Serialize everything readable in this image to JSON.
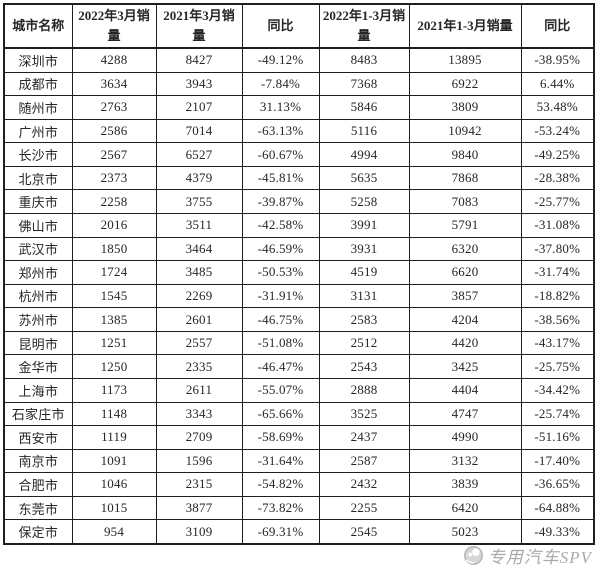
{
  "page": {
    "background": "#ffffff",
    "border_color": "#1f1f1f",
    "text_color": "#262626"
  },
  "chart_data": {
    "type": "table",
    "title": "",
    "columns": [
      "城市名称",
      "2022年3月销量",
      "2021年3月销量",
      "同比",
      "2022年1-3月销量",
      "2021年1-3月销量",
      "同比"
    ],
    "cell_names": [
      "cell-city-name",
      "cell-2022-mar-sales",
      "cell-2021-mar-sales",
      "cell-yoy-mar",
      "cell-2022-jan-mar-sales",
      "cell-2021-jan-mar-sales",
      "cell-yoy-jan-mar"
    ],
    "rows": [
      [
        "深圳市",
        "4288",
        "8427",
        "-49.12%",
        "8483",
        "13895",
        "-38.95%"
      ],
      [
        "成都市",
        "3634",
        "3943",
        "-7.84%",
        "7368",
        "6922",
        "6.44%"
      ],
      [
        "随州市",
        "2763",
        "2107",
        "31.13%",
        "5846",
        "3809",
        "53.48%"
      ],
      [
        "广州市",
        "2586",
        "7014",
        "-63.13%",
        "5116",
        "10942",
        "-53.24%"
      ],
      [
        "长沙市",
        "2567",
        "6527",
        "-60.67%",
        "4994",
        "9840",
        "-49.25%"
      ],
      [
        "北京市",
        "2373",
        "4379",
        "-45.81%",
        "5635",
        "7868",
        "-28.38%"
      ],
      [
        "重庆市",
        "2258",
        "3755",
        "-39.87%",
        "5258",
        "7083",
        "-25.77%"
      ],
      [
        "佛山市",
        "2016",
        "3511",
        "-42.58%",
        "3991",
        "5791",
        "-31.08%"
      ],
      [
        "武汉市",
        "1850",
        "3464",
        "-46.59%",
        "3931",
        "6320",
        "-37.80%"
      ],
      [
        "郑州市",
        "1724",
        "3485",
        "-50.53%",
        "4519",
        "6620",
        "-31.74%"
      ],
      [
        "杭州市",
        "1545",
        "2269",
        "-31.91%",
        "3131",
        "3857",
        "-18.82%"
      ],
      [
        "苏州市",
        "1385",
        "2601",
        "-46.75%",
        "2583",
        "4204",
        "-38.56%"
      ],
      [
        "昆明市",
        "1251",
        "2557",
        "-51.08%",
        "2512",
        "4420",
        "-43.17%"
      ],
      [
        "金华市",
        "1250",
        "2335",
        "-46.47%",
        "2543",
        "3425",
        "-25.75%"
      ],
      [
        "上海市",
        "1173",
        "2611",
        "-55.07%",
        "2888",
        "4404",
        "-34.42%"
      ],
      [
        "石家庄市",
        "1148",
        "3343",
        "-65.66%",
        "3525",
        "4747",
        "-25.74%"
      ],
      [
        "西安市",
        "1119",
        "2709",
        "-58.69%",
        "2437",
        "4990",
        "-51.16%"
      ],
      [
        "南京市",
        "1091",
        "1596",
        "-31.64%",
        "2587",
        "3132",
        "-17.40%"
      ],
      [
        "合肥市",
        "1046",
        "2315",
        "-54.82%",
        "2432",
        "3839",
        "-36.65%"
      ],
      [
        "东莞市",
        "1015",
        "3877",
        "-73.82%",
        "2255",
        "6420",
        "-64.88%"
      ],
      [
        "保定市",
        "954",
        "3109",
        "-69.31%",
        "2545",
        "5023",
        "-49.33%"
      ]
    ]
  },
  "watermark": {
    "text": "专用汽车SPV",
    "color": "#a9a9a9"
  }
}
